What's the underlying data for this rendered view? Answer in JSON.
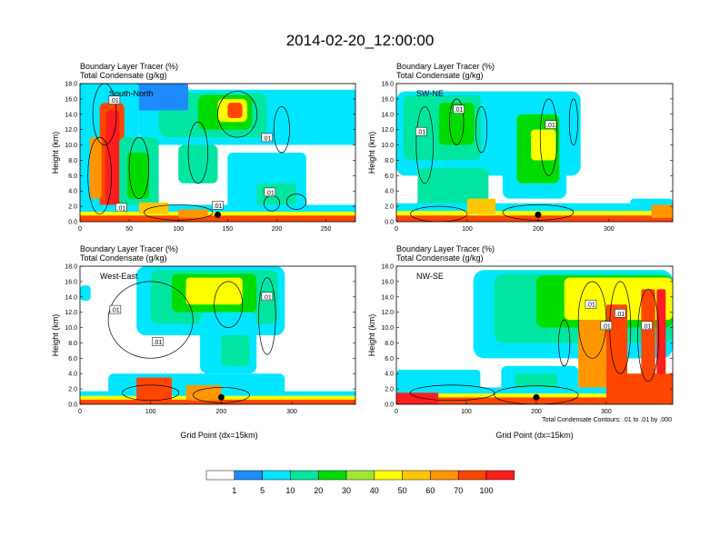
{
  "figure": {
    "title": "2014-02-20_12:00:00",
    "variable_labels": [
      "Boundary Layer Tracer   (%)",
      "Total Condensate   (g/kg)"
    ],
    "y_axis_label": "Height (km)",
    "x_axis_label": "Grid Point (dx=15km)",
    "contour_note": "Total Condensate Contours: .01 to .01 by .000",
    "contour_label": ".01"
  },
  "colorbar": {
    "colors": [
      "#ffffff",
      "#1e8cff",
      "#00e6ff",
      "#00e6a0",
      "#00dc00",
      "#a0e632",
      "#ffff00",
      "#ffc800",
      "#ff9600",
      "#ff4600",
      "#ff1e1e"
    ],
    "labels": [
      "1",
      "5",
      "10",
      "20",
      "30",
      "40",
      "50",
      "60",
      "70",
      "100"
    ]
  },
  "chart_data": [
    {
      "type": "heatmap",
      "cross_section": "South-North",
      "title": "Boundary Layer Tracer (%) / Total Condensate (g/kg)",
      "xlabel": "",
      "ylabel": "Height (km)",
      "xlim": [
        0,
        280
      ],
      "ylim": [
        0,
        18
      ],
      "xticks": [
        0,
        50,
        100,
        150,
        200,
        250
      ],
      "yticks": [
        0.0,
        2.0,
        4.0,
        6.0,
        8.0,
        10.0,
        12.0,
        14.0,
        16.0,
        18.0
      ],
      "marker": {
        "x": 140,
        "y": 0.9
      },
      "contour_labels": [
        {
          "x": 35,
          "y": 15.8
        },
        {
          "x": 190,
          "y": 10.9
        },
        {
          "x": 193,
          "y": 3.8
        },
        {
          "x": 140,
          "y": 2.1
        },
        {
          "x": 42,
          "y": 1.8
        }
      ]
    },
    {
      "type": "heatmap",
      "cross_section": "SW-NE",
      "title": "Boundary Layer Tracer (%) / Total Condensate (g/kg)",
      "xlabel": "",
      "ylabel": "Height (km)",
      "xlim": [
        0,
        390
      ],
      "ylim": [
        0,
        18
      ],
      "xticks": [
        0,
        100,
        200,
        300
      ],
      "yticks": [
        0.0,
        2.0,
        4.0,
        6.0,
        8.0,
        10.0,
        12.0,
        14.0,
        16.0,
        18.0
      ],
      "marker": {
        "x": 200,
        "y": 0.9
      },
      "contour_labels": [
        {
          "x": 35,
          "y": 11.7
        },
        {
          "x": 88,
          "y": 14.6
        },
        {
          "x": 218,
          "y": 12.6
        }
      ]
    },
    {
      "type": "heatmap",
      "cross_section": "West-East",
      "title": "Boundary Layer Tracer (%) / Total Condensate (g/kg)",
      "xlabel": "Grid Point (dx=15km)",
      "ylabel": "Height (km)",
      "xlim": [
        0,
        390
      ],
      "ylim": [
        0,
        18
      ],
      "xticks": [
        0,
        100,
        200,
        300
      ],
      "yticks": [
        0.0,
        2.0,
        4.0,
        6.0,
        8.0,
        10.0,
        12.0,
        14.0,
        16.0,
        18.0
      ],
      "marker": {
        "x": 200,
        "y": 0.9
      },
      "contour_labels": [
        {
          "x": 50,
          "y": 12.3
        },
        {
          "x": 110,
          "y": 8.1
        },
        {
          "x": 265,
          "y": 14.0
        }
      ]
    },
    {
      "type": "heatmap",
      "cross_section": "NW-SE",
      "title": "Boundary Layer Tracer (%) / Total Condensate (g/kg)",
      "xlabel": "Grid Point (dx=15km)",
      "ylabel": "Height (km)",
      "xlim": [
        0,
        395
      ],
      "ylim": [
        0,
        18
      ],
      "xticks": [
        0,
        100,
        200,
        300
      ],
      "yticks": [
        0.0,
        2.0,
        4.0,
        6.0,
        8.0,
        10.0,
        12.0,
        14.0,
        16.0,
        18.0
      ],
      "marker": {
        "x": 200,
        "y": 0.9
      },
      "contour_labels": [
        {
          "x": 278,
          "y": 13.0
        },
        {
          "x": 320,
          "y": 11.8
        },
        {
          "x": 300,
          "y": 10.2
        },
        {
          "x": 358,
          "y": 10.2
        }
      ]
    }
  ]
}
